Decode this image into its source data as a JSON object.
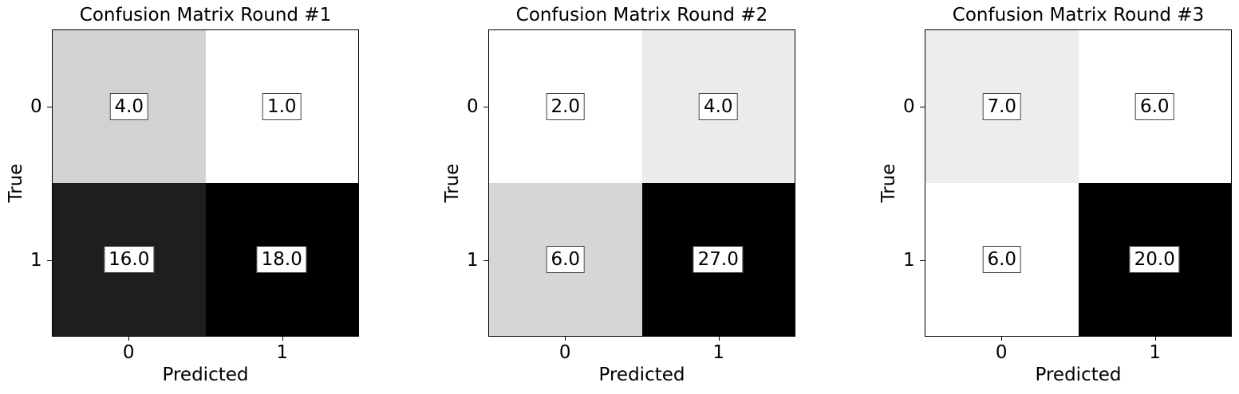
{
  "chart_data": [
    {
      "type": "heatmap",
      "title": "Confusion Matrix Round #1",
      "xlabel": "Predicted",
      "ylabel": "True",
      "x_categories": [
        "0",
        "1"
      ],
      "y_categories": [
        "0",
        "1"
      ],
      "values": [
        [
          4.0,
          1.0
        ],
        [
          16.0,
          18.0
        ]
      ],
      "cell_labels": [
        [
          "4.0",
          "1.0"
        ],
        [
          "16.0",
          "18.0"
        ]
      ],
      "colormap": "greys"
    },
    {
      "type": "heatmap",
      "title": "Confusion Matrix Round #2",
      "xlabel": "Predicted",
      "ylabel": "True",
      "x_categories": [
        "0",
        "1"
      ],
      "y_categories": [
        "0",
        "1"
      ],
      "values": [
        [
          2.0,
          4.0
        ],
        [
          6.0,
          27.0
        ]
      ],
      "cell_labels": [
        [
          "2.0",
          "4.0"
        ],
        [
          "6.0",
          "27.0"
        ]
      ],
      "colormap": "greys"
    },
    {
      "type": "heatmap",
      "title": "Confusion Matrix Round #3",
      "xlabel": "Predicted",
      "ylabel": "True",
      "x_categories": [
        "0",
        "1"
      ],
      "y_categories": [
        "0",
        "1"
      ],
      "values": [
        [
          7.0,
          6.0
        ],
        [
          6.0,
          20.0
        ]
      ],
      "cell_labels": [
        [
          "7.0",
          "6.0"
        ],
        [
          "6.0",
          "20.0"
        ]
      ],
      "colormap": "greys"
    }
  ]
}
